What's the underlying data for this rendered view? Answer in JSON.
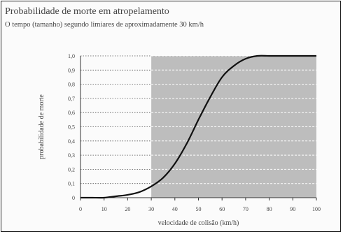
{
  "title": "Probabilidade de morte em atropelamento",
  "subtitle": "O tempo (tamanho) segundo limiares de aproximadamente 30 km/h",
  "chart_data": {
    "type": "line",
    "xlabel": "velocidade de colisão (km/h)",
    "ylabel": "probabilidade de morte",
    "xlim": [
      0,
      100
    ],
    "ylim": [
      0,
      1
    ],
    "x_ticks": [
      "0",
      "10",
      "20",
      "30",
      "40",
      "50",
      "60",
      "70",
      "80",
      "90",
      "100"
    ],
    "y_ticks": [
      "0",
      "0,1",
      "0,2",
      "0,3",
      "0,4",
      "0,5",
      "0,6",
      "0,7",
      "0,8",
      "0,9",
      "1,0"
    ],
    "shaded_region_x": [
      30,
      100
    ],
    "grid": true,
    "series": [
      {
        "color": "#111111",
        "x": [
          0,
          5,
          10,
          15,
          20,
          25,
          30,
          35,
          40,
          45,
          50,
          55,
          60,
          65,
          70,
          75,
          80,
          85,
          90,
          95,
          100
        ],
        "y": [
          0.0,
          0.0,
          0.0,
          0.01,
          0.02,
          0.04,
          0.08,
          0.14,
          0.24,
          0.38,
          0.55,
          0.71,
          0.85,
          0.93,
          0.98,
          1.0,
          1.0,
          1.0,
          1.0,
          1.0,
          1.0
        ]
      }
    ],
    "colors": {
      "shade": "#bdbdbd",
      "background": "#fbfbfb",
      "axis": "#333333",
      "grid": "#ffffff"
    }
  }
}
